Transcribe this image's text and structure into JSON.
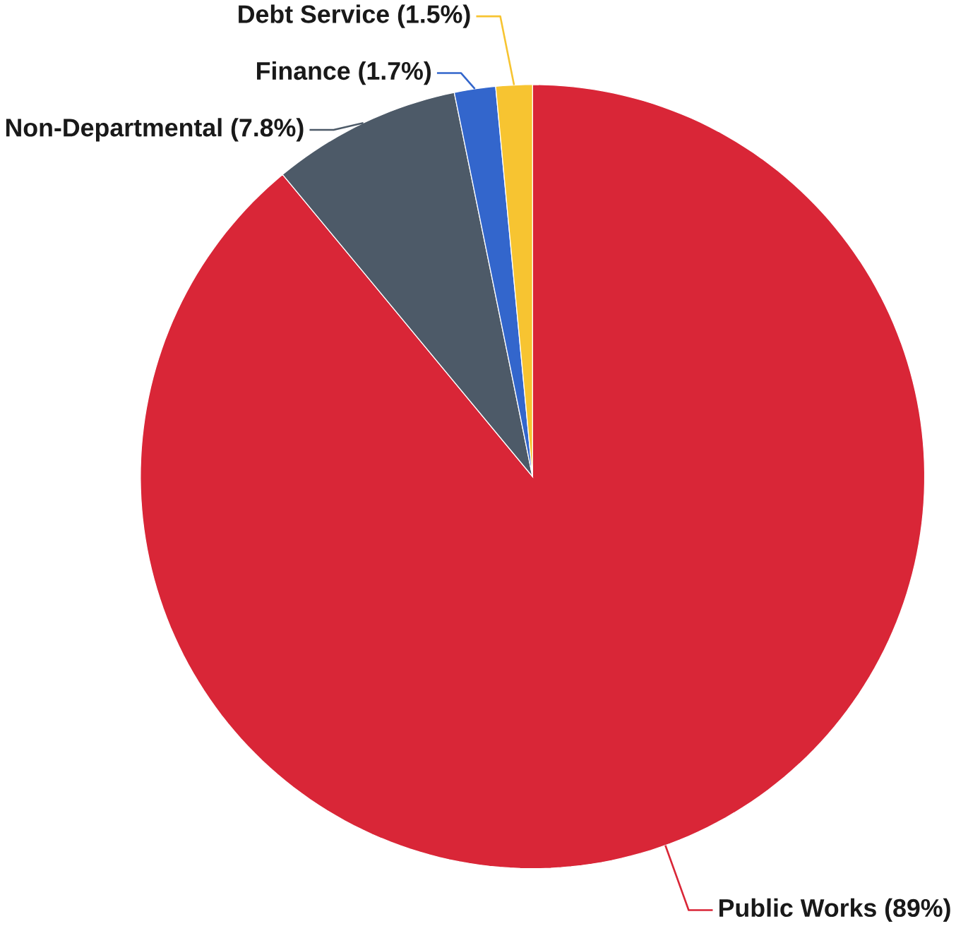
{
  "chart_data": {
    "type": "pie",
    "categories": [
      "Public Works (89%)",
      "Non-Departmental (7.8%)",
      "Finance (1.7%)",
      "Debt Service (1.5%)"
    ],
    "values": [
      89,
      7.8,
      1.7,
      1.5
    ],
    "colors": [
      "#d92637",
      "#4d5a68",
      "#3366cc",
      "#f7c431"
    ]
  }
}
